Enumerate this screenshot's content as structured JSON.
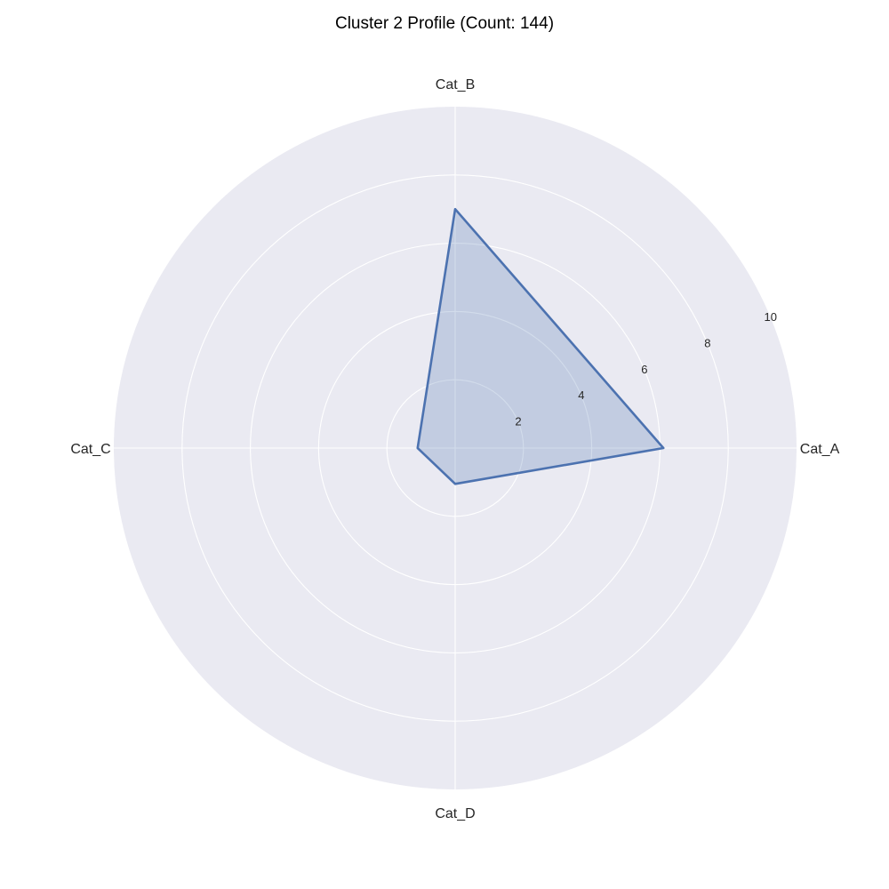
{
  "chart_data": {
    "type": "radar",
    "title": "Cluster 2 Profile (Count: 144)",
    "categories": [
      "Cat_A",
      "Cat_B",
      "Cat_C",
      "Cat_D"
    ],
    "series": [
      {
        "values": [
          6.1,
          7.0,
          1.1,
          1.05
        ]
      }
    ],
    "rlim": [
      0,
      10
    ],
    "r_ticks": [
      "2",
      "4",
      "6",
      "8",
      "10"
    ],
    "grid": true,
    "colors": {
      "background": "#eaeaf2",
      "grid": "#ffffff",
      "line": "#4c72b0",
      "fill": "#4c72b0",
      "text": "#262626"
    }
  }
}
